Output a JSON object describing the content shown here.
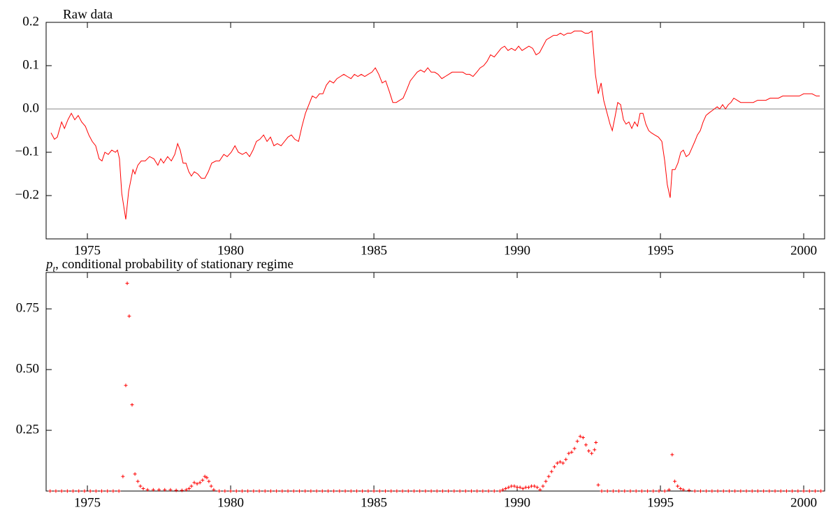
{
  "chart_data": [
    {
      "type": "line",
      "title": "Raw data",
      "color": "#ff0000",
      "zero_line": true,
      "xlim": [
        1973.56,
        2000.73
      ],
      "xticks": [
        1975,
        1980,
        1985,
        1990,
        1995,
        2000
      ],
      "ylim": [
        -0.3,
        0.2
      ],
      "yticks": [
        {
          "value": -0.2,
          "label": "−0.2"
        },
        {
          "value": -0.1,
          "label": "−0.1"
        },
        {
          "value": 0,
          "label": "0.0"
        },
        0.1,
        0.2
      ],
      "x": [
        1973.73,
        1973.85,
        1973.95,
        1974.1,
        1974.2,
        1974.32,
        1974.44,
        1974.56,
        1974.68,
        1974.8,
        1974.93,
        1975.05,
        1975.17,
        1975.29,
        1975.41,
        1975.51,
        1975.61,
        1975.73,
        1975.85,
        1975.98,
        1976.05,
        1976.12,
        1976.2,
        1976.34,
        1976.44,
        1976.59,
        1976.66,
        1976.76,
        1976.88,
        1977.02,
        1977.17,
        1977.32,
        1977.46,
        1977.56,
        1977.66,
        1977.8,
        1977.93,
        1978.05,
        1978.15,
        1978.24,
        1978.34,
        1978.44,
        1978.54,
        1978.63,
        1978.73,
        1978.85,
        1978.98,
        1979.1,
        1979.22,
        1979.34,
        1979.49,
        1979.61,
        1979.76,
        1979.88,
        1980.02,
        1980.15,
        1980.27,
        1980.41,
        1980.54,
        1980.66,
        1980.78,
        1980.9,
        1981.02,
        1981.15,
        1981.27,
        1981.39,
        1981.51,
        1981.63,
        1981.76,
        1981.88,
        1982,
        1982.12,
        1982.24,
        1982.37,
        1982.49,
        1982.61,
        1982.73,
        1982.85,
        1982.98,
        1983.1,
        1983.22,
        1983.34,
        1983.46,
        1983.59,
        1983.71,
        1983.83,
        1983.95,
        1984.07,
        1984.2,
        1984.32,
        1984.44,
        1984.56,
        1984.68,
        1984.8,
        1984.93,
        1985.05,
        1985.17,
        1985.29,
        1985.41,
        1985.54,
        1985.66,
        1985.78,
        1985.9,
        1986.02,
        1986.15,
        1986.27,
        1986.39,
        1986.51,
        1986.63,
        1986.76,
        1986.88,
        1987,
        1987.12,
        1987.24,
        1987.37,
        1987.49,
        1987.61,
        1987.73,
        1987.85,
        1987.98,
        1988.1,
        1988.22,
        1988.34,
        1988.46,
        1988.59,
        1988.71,
        1988.83,
        1988.95,
        1989.07,
        1989.2,
        1989.32,
        1989.44,
        1989.56,
        1989.68,
        1989.8,
        1989.93,
        1990.05,
        1990.17,
        1990.29,
        1990.41,
        1990.54,
        1990.66,
        1990.78,
        1990.9,
        1991.02,
        1991.15,
        1991.27,
        1991.39,
        1991.51,
        1991.63,
        1991.76,
        1991.88,
        1992,
        1992.12,
        1992.24,
        1992.37,
        1992.49,
        1992.61,
        1992.73,
        1992.83,
        1992.93,
        1993.02,
        1993.12,
        1993.24,
        1993.32,
        1993.41,
        1993.51,
        1993.61,
        1993.71,
        1993.8,
        1993.9,
        1994,
        1994.1,
        1994.2,
        1994.29,
        1994.39,
        1994.49,
        1994.59,
        1994.68,
        1994.8,
        1994.93,
        1995.05,
        1995.15,
        1995.24,
        1995.34,
        1995.41,
        1995.51,
        1995.61,
        1995.71,
        1995.8,
        1995.9,
        1996,
        1996.1,
        1996.2,
        1996.29,
        1996.39,
        1996.49,
        1996.59,
        1996.68,
        1996.78,
        1996.88,
        1996.98,
        1997.07,
        1997.17,
        1997.27,
        1997.37,
        1997.46,
        1997.56,
        1997.68,
        1997.8,
        1997.95,
        1998.1,
        1998.24,
        1998.39,
        1998.54,
        1998.68,
        1998.83,
        1998.98,
        1999.12,
        1999.27,
        1999.41,
        1999.56,
        1999.71,
        1999.85,
        2000,
        2000.15,
        2000.29,
        2000.44,
        2000.56
      ],
      "values": [
        -0.055,
        -0.07,
        -0.065,
        -0.03,
        -0.045,
        -0.025,
        -0.01,
        -0.025,
        -0.015,
        -0.03,
        -0.04,
        -0.06,
        -0.075,
        -0.085,
        -0.115,
        -0.12,
        -0.1,
        -0.105,
        -0.095,
        -0.1,
        -0.095,
        -0.115,
        -0.195,
        -0.255,
        -0.19,
        -0.14,
        -0.15,
        -0.13,
        -0.12,
        -0.12,
        -0.11,
        -0.115,
        -0.13,
        -0.115,
        -0.125,
        -0.11,
        -0.12,
        -0.105,
        -0.08,
        -0.095,
        -0.125,
        -0.125,
        -0.145,
        -0.155,
        -0.145,
        -0.15,
        -0.16,
        -0.16,
        -0.145,
        -0.125,
        -0.12,
        -0.12,
        -0.105,
        -0.11,
        -0.1,
        -0.085,
        -0.1,
        -0.105,
        -0.1,
        -0.11,
        -0.095,
        -0.075,
        -0.07,
        -0.06,
        -0.075,
        -0.065,
        -0.085,
        -0.08,
        -0.085,
        -0.075,
        -0.065,
        -0.06,
        -0.07,
        -0.075,
        -0.04,
        -0.01,
        0.01,
        0.03,
        0.025,
        0.035,
        0.035,
        0.055,
        0.065,
        0.06,
        0.07,
        0.075,
        0.08,
        0.075,
        0.07,
        0.08,
        0.075,
        0.08,
        0.075,
        0.08,
        0.085,
        0.095,
        0.08,
        0.06,
        0.065,
        0.04,
        0.015,
        0.015,
        0.02,
        0.025,
        0.045,
        0.065,
        0.075,
        0.085,
        0.09,
        0.085,
        0.095,
        0.085,
        0.085,
        0.08,
        0.07,
        0.075,
        0.08,
        0.085,
        0.085,
        0.085,
        0.085,
        0.08,
        0.08,
        0.075,
        0.085,
        0.095,
        0.1,
        0.11,
        0.125,
        0.12,
        0.13,
        0.14,
        0.145,
        0.135,
        0.14,
        0.135,
        0.145,
        0.135,
        0.14,
        0.145,
        0.14,
        0.125,
        0.13,
        0.145,
        0.16,
        0.165,
        0.17,
        0.17,
        0.175,
        0.17,
        0.175,
        0.175,
        0.18,
        0.18,
        0.18,
        0.175,
        0.175,
        0.18,
        0.08,
        0.035,
        0.06,
        0.02,
        -0.005,
        -0.035,
        -0.05,
        -0.02,
        0.015,
        0.01,
        -0.025,
        -0.035,
        -0.03,
        -0.045,
        -0.03,
        -0.04,
        -0.01,
        -0.01,
        -0.035,
        -0.05,
        -0.055,
        -0.06,
        -0.065,
        -0.075,
        -0.12,
        -0.175,
        -0.205,
        -0.14,
        -0.14,
        -0.125,
        -0.1,
        -0.095,
        -0.11,
        -0.105,
        -0.09,
        -0.075,
        -0.06,
        -0.05,
        -0.03,
        -0.015,
        -0.01,
        -0.005,
        0,
        0.005,
        0,
        0.01,
        0,
        0.01,
        0.015,
        0.025,
        0.02,
        0.015,
        0.015,
        0.015,
        0.015,
        0.02,
        0.02,
        0.02,
        0.025,
        0.025,
        0.025,
        0.03,
        0.03,
        0.03,
        0.03,
        0.03,
        0.035,
        0.035,
        0.035,
        0.03,
        0.03
      ]
    },
    {
      "type": "scatter",
      "title_symbol": "p",
      "title_subscript": "t",
      "title": ", conditional probability of stationary regime",
      "color": "#ff0000",
      "xlim": [
        1973.56,
        2000.73
      ],
      "xticks": [
        1975,
        1980,
        1985,
        1990,
        1995,
        2000
      ],
      "ylim": [
        0,
        0.9
      ],
      "yticks": [
        0.25,
        {
          "value": 0.5,
          "label": "0.50"
        },
        0.75
      ],
      "x": [
        1973.7,
        1973.9,
        1974.1,
        1974.3,
        1974.5,
        1974.7,
        1974.9,
        1975.1,
        1975.3,
        1975.5,
        1975.7,
        1975.9,
        1976.1,
        1976.24,
        1976.34,
        1976.39,
        1976.46,
        1976.56,
        1976.66,
        1976.76,
        1976.85,
        1976.95,
        1977.1,
        1977.3,
        1977.5,
        1977.7,
        1977.9,
        1978.1,
        1978.3,
        1978.45,
        1978.55,
        1978.63,
        1978.73,
        1978.83,
        1978.93,
        1979.02,
        1979.1,
        1979.17,
        1979.24,
        1979.32,
        1979.41,
        1979.6,
        1979.8,
        1980,
        1980.2,
        1980.4,
        1980.6,
        1980.8,
        1981,
        1981.2,
        1981.4,
        1981.6,
        1981.8,
        1982,
        1982.2,
        1982.4,
        1982.6,
        1982.8,
        1983,
        1983.2,
        1983.4,
        1983.6,
        1983.8,
        1984,
        1984.2,
        1984.4,
        1984.6,
        1984.8,
        1985,
        1985.2,
        1985.4,
        1985.6,
        1985.8,
        1986,
        1986.2,
        1986.4,
        1986.6,
        1986.8,
        1987,
        1987.2,
        1987.4,
        1987.6,
        1987.8,
        1988,
        1988.2,
        1988.4,
        1988.6,
        1988.8,
        1989,
        1989.2,
        1989.4,
        1989.5,
        1989.6,
        1989.7,
        1989.8,
        1989.9,
        1990,
        1990.1,
        1990.2,
        1990.3,
        1990.4,
        1990.5,
        1990.6,
        1990.7,
        1990.8,
        1990.9,
        1991,
        1991.1,
        1991.2,
        1991.3,
        1991.4,
        1991.5,
        1991.6,
        1991.7,
        1991.8,
        1991.9,
        1992,
        1992.1,
        1992.2,
        1992.3,
        1992.4,
        1992.5,
        1992.6,
        1992.7,
        1992.75,
        1992.83,
        1992.95,
        1993.15,
        1993.35,
        1993.55,
        1993.75,
        1993.95,
        1994.15,
        1994.35,
        1994.55,
        1994.75,
        1994.95,
        1995.15,
        1995.3,
        1995.41,
        1995.5,
        1995.6,
        1995.7,
        1995.8,
        1996,
        1996.2,
        1996.4,
        1996.6,
        1996.8,
        1997,
        1997.2,
        1997.4,
        1997.6,
        1997.8,
        1998,
        1998.2,
        1998.4,
        1998.6,
        1998.8,
        1999,
        1999.2,
        1999.4,
        1999.6,
        1999.8,
        2000,
        2000.2,
        2000.4,
        2000.6
      ],
      "values": [
        0,
        0,
        0,
        0,
        0,
        0,
        0,
        0,
        0,
        0,
        0,
        0,
        0,
        0.06,
        0.435,
        0.855,
        0.72,
        0.355,
        0.07,
        0.04,
        0.02,
        0.01,
        0.005,
        0.005,
        0.005,
        0.005,
        0.005,
        0.003,
        0.003,
        0.005,
        0.01,
        0.02,
        0.035,
        0.03,
        0.035,
        0.045,
        0.06,
        0.055,
        0.04,
        0.02,
        0.005,
        0,
        0,
        0,
        0,
        0,
        0,
        0,
        0,
        0,
        0,
        0,
        0,
        0,
        0,
        0,
        0,
        0,
        0,
        0,
        0,
        0,
        0,
        0,
        0,
        0,
        0,
        0,
        0,
        0,
        0,
        0,
        0,
        0,
        0,
        0,
        0,
        0,
        0,
        0,
        0,
        0,
        0,
        0,
        0,
        0,
        0,
        0,
        0,
        0,
        0,
        0.005,
        0.01,
        0.015,
        0.02,
        0.02,
        0.015,
        0.015,
        0.01,
        0.015,
        0.015,
        0.02,
        0.02,
        0.015,
        0.005,
        0.02,
        0.04,
        0.06,
        0.08,
        0.1,
        0.115,
        0.12,
        0.115,
        0.13,
        0.155,
        0.16,
        0.175,
        0.205,
        0.225,
        0.22,
        0.19,
        0.165,
        0.155,
        0.17,
        0.2,
        0.025,
        0,
        0,
        0,
        0,
        0,
        0,
        0,
        0,
        0,
        0,
        0,
        0,
        0.005,
        0.15,
        0.04,
        0.02,
        0.01,
        0.005,
        0.003,
        0,
        0,
        0,
        0,
        0,
        0,
        0,
        0,
        0,
        0,
        0,
        0,
        0,
        0,
        0,
        0,
        0,
        0,
        0,
        0,
        0,
        0,
        0
      ]
    }
  ]
}
